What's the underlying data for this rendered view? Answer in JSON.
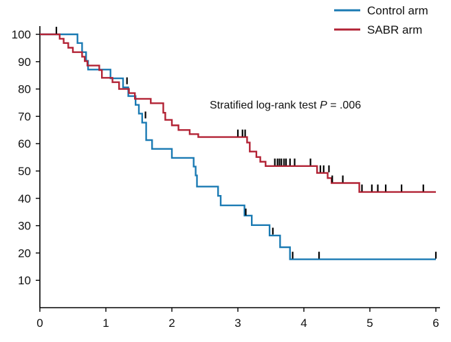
{
  "chart_data": {
    "type": "line",
    "title": "",
    "xlabel": "",
    "ylabel": "",
    "xlim": [
      0,
      6
    ],
    "ylim": [
      0,
      100
    ],
    "x_ticks": [
      0,
      1,
      2,
      3,
      4,
      5,
      6
    ],
    "y_ticks": [
      10,
      20,
      30,
      40,
      50,
      60,
      70,
      80,
      90,
      100
    ],
    "grid": false,
    "legend_position": "top-right",
    "annotation": {
      "prefix": "Stratified log-rank test ",
      "p_symbol": "P",
      "suffix": " = .006"
    },
    "series": [
      {
        "name": "Control arm",
        "color": "#1a7ab3",
        "steps": [
          [
            0,
            100
          ],
          [
            0.57,
            100
          ],
          [
            0.57,
            96.8
          ],
          [
            0.64,
            96.8
          ],
          [
            0.64,
            93.5
          ],
          [
            0.7,
            93.5
          ],
          [
            0.7,
            90.3
          ],
          [
            0.73,
            90.3
          ],
          [
            0.73,
            87.1
          ],
          [
            1.07,
            87.1
          ],
          [
            1.07,
            83.9
          ],
          [
            1.26,
            83.9
          ],
          [
            1.26,
            80.6
          ],
          [
            1.34,
            80.6
          ],
          [
            1.34,
            77.4
          ],
          [
            1.45,
            77.4
          ],
          [
            1.45,
            74.2
          ],
          [
            1.5,
            74.2
          ],
          [
            1.5,
            71.0
          ],
          [
            1.55,
            71.0
          ],
          [
            1.55,
            67.7
          ],
          [
            1.61,
            67.7
          ],
          [
            1.61,
            61.3
          ],
          [
            1.7,
            61.3
          ],
          [
            1.7,
            58.1
          ],
          [
            2.0,
            58.1
          ],
          [
            2.0,
            54.8
          ],
          [
            2.33,
            54.8
          ],
          [
            2.33,
            51.6
          ],
          [
            2.36,
            51.6
          ],
          [
            2.36,
            48.4
          ],
          [
            2.38,
            48.4
          ],
          [
            2.38,
            44.3
          ],
          [
            2.7,
            44.3
          ],
          [
            2.7,
            40.9
          ],
          [
            2.74,
            40.9
          ],
          [
            2.74,
            37.4
          ],
          [
            3.1,
            37.4
          ],
          [
            3.1,
            33.7
          ],
          [
            3.21,
            33.7
          ],
          [
            3.21,
            30.2
          ],
          [
            3.48,
            30.2
          ],
          [
            3.48,
            26.4
          ],
          [
            3.64,
            26.4
          ],
          [
            3.64,
            22.1
          ],
          [
            3.79,
            22.1
          ],
          [
            3.79,
            17.7
          ],
          [
            6.0,
            17.7
          ]
        ],
        "censored": [
          [
            1.32,
            83.0
          ],
          [
            1.6,
            70.5
          ],
          [
            3.12,
            35.0
          ],
          [
            3.53,
            28.0
          ],
          [
            3.83,
            19.2
          ],
          [
            4.23,
            19.2
          ],
          [
            6.0,
            19.2
          ]
        ]
      },
      {
        "name": "SABR arm",
        "color": "#b22234",
        "steps": [
          [
            0,
            100
          ],
          [
            0.3,
            100
          ],
          [
            0.3,
            98.4
          ],
          [
            0.36,
            98.4
          ],
          [
            0.36,
            96.8
          ],
          [
            0.43,
            96.8
          ],
          [
            0.43,
            95.1
          ],
          [
            0.5,
            95.1
          ],
          [
            0.5,
            93.5
          ],
          [
            0.64,
            93.5
          ],
          [
            0.64,
            91.8
          ],
          [
            0.68,
            91.8
          ],
          [
            0.68,
            90.2
          ],
          [
            0.72,
            90.2
          ],
          [
            0.72,
            88.6
          ],
          [
            0.9,
            88.6
          ],
          [
            0.9,
            86.9
          ],
          [
            0.94,
            86.9
          ],
          [
            0.94,
            84.1
          ],
          [
            1.1,
            84.1
          ],
          [
            1.1,
            82.5
          ],
          [
            1.2,
            82.5
          ],
          [
            1.2,
            80.0
          ],
          [
            1.35,
            80.0
          ],
          [
            1.35,
            78.5
          ],
          [
            1.44,
            78.5
          ],
          [
            1.44,
            76.4
          ],
          [
            1.68,
            76.4
          ],
          [
            1.68,
            74.8
          ],
          [
            1.87,
            74.8
          ],
          [
            1.87,
            71.3
          ],
          [
            1.9,
            71.3
          ],
          [
            1.9,
            68.7
          ],
          [
            2.0,
            68.7
          ],
          [
            2.0,
            66.7
          ],
          [
            2.1,
            66.7
          ],
          [
            2.1,
            65.0
          ],
          [
            2.27,
            65.0
          ],
          [
            2.27,
            63.5
          ],
          [
            2.4,
            63.5
          ],
          [
            2.4,
            62.4
          ],
          [
            3.14,
            62.4
          ],
          [
            3.14,
            60.4
          ],
          [
            3.18,
            60.4
          ],
          [
            3.18,
            57.1
          ],
          [
            3.28,
            57.1
          ],
          [
            3.28,
            55.1
          ],
          [
            3.34,
            55.1
          ],
          [
            3.34,
            53.4
          ],
          [
            3.42,
            53.4
          ],
          [
            3.42,
            51.8
          ],
          [
            4.2,
            51.8
          ],
          [
            4.2,
            49.3
          ],
          [
            4.36,
            49.3
          ],
          [
            4.36,
            47.4
          ],
          [
            4.42,
            47.4
          ],
          [
            4.42,
            45.6
          ],
          [
            4.84,
            45.6
          ],
          [
            4.84,
            42.3
          ],
          [
            6.0,
            42.3
          ]
        ],
        "censored": [
          [
            0.25,
            101.5
          ],
          [
            3.0,
            63.9
          ],
          [
            3.07,
            63.9
          ],
          [
            3.11,
            63.9
          ],
          [
            3.56,
            53.3
          ],
          [
            3.6,
            53.3
          ],
          [
            3.63,
            53.3
          ],
          [
            3.66,
            53.3
          ],
          [
            3.7,
            53.3
          ],
          [
            3.73,
            53.3
          ],
          [
            3.79,
            53.3
          ],
          [
            3.86,
            53.3
          ],
          [
            4.1,
            53.3
          ],
          [
            4.25,
            50.8
          ],
          [
            4.3,
            50.8
          ],
          [
            4.38,
            50.8
          ],
          [
            4.43,
            47.1
          ],
          [
            4.59,
            47.1
          ],
          [
            4.88,
            43.8
          ],
          [
            5.03,
            43.8
          ],
          [
            5.12,
            43.8
          ],
          [
            5.24,
            43.8
          ],
          [
            5.48,
            43.8
          ],
          [
            5.81,
            43.8
          ]
        ]
      }
    ]
  }
}
